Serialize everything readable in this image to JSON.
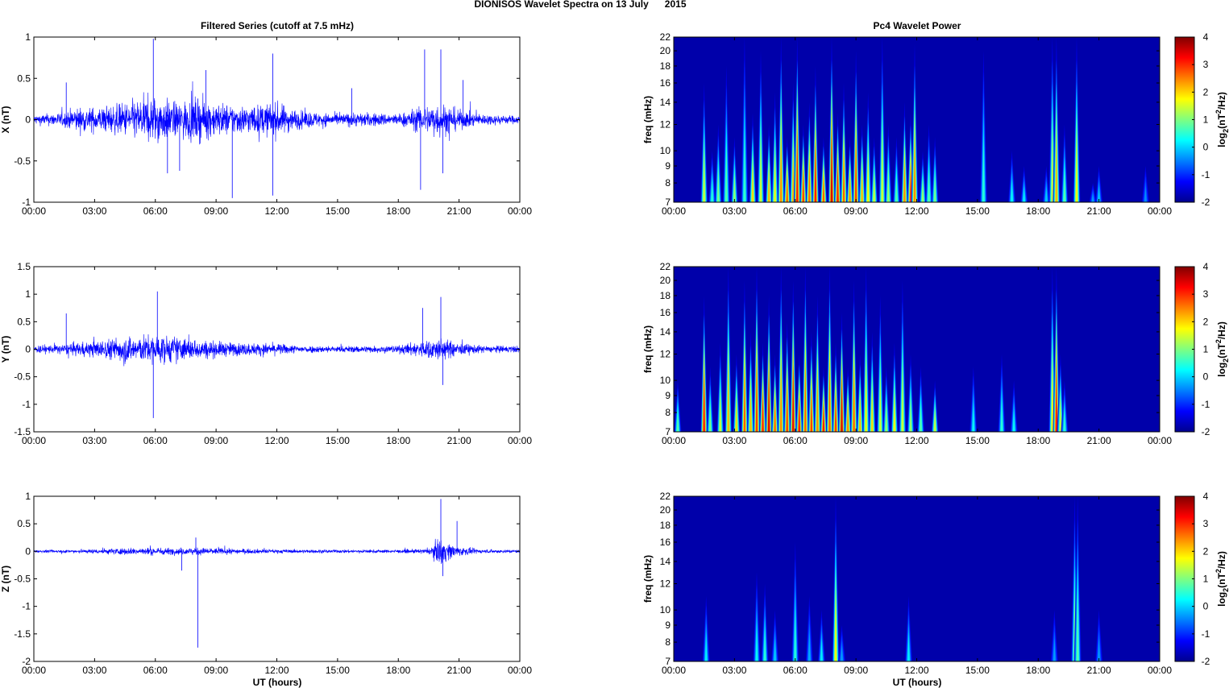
{
  "figure": {
    "title": "DIONISOS Wavelet Spectra on 13 July      2015",
    "left_title": "Filtered Series (cutoff at 7.5 mHz)",
    "right_title": "Pc4 Wavelet Power",
    "xlabel": "UT (hours)"
  },
  "colors": {
    "series": "#0000ff",
    "colormap": "jet"
  },
  "chart_data": [
    {
      "type": "line",
      "name": "x-series",
      "ylabel": "X (nT)",
      "ylim": [
        -1,
        1
      ],
      "yticks": [
        -1,
        -0.5,
        0,
        0.5,
        1
      ],
      "ytick_labels": [
        "-1",
        "-0.5",
        "0",
        "0.5",
        "1"
      ],
      "xticks": [
        "00:00",
        "03:00",
        "06:00",
        "09:00",
        "12:00",
        "15:00",
        "18:00",
        "21:00",
        "00:00"
      ],
      "envelope": [
        [
          0,
          0.1
        ],
        [
          1.5,
          0.15
        ],
        [
          2,
          0.25
        ],
        [
          3,
          0.25
        ],
        [
          4,
          0.3
        ],
        [
          5,
          0.4
        ],
        [
          6,
          0.5
        ],
        [
          7,
          0.35
        ],
        [
          8,
          0.45
        ],
        [
          9,
          0.35
        ],
        [
          10,
          0.3
        ],
        [
          11,
          0.3
        ],
        [
          12,
          0.35
        ],
        [
          13,
          0.2
        ],
        [
          14,
          0.15
        ],
        [
          15,
          0.12
        ],
        [
          16,
          0.15
        ],
        [
          18,
          0.12
        ],
        [
          19,
          0.25
        ],
        [
          20,
          0.35
        ],
        [
          20.5,
          0.3
        ],
        [
          21,
          0.2
        ],
        [
          22,
          0.12
        ],
        [
          24,
          0.08
        ]
      ],
      "spikes": [
        [
          1.6,
          0.45
        ],
        [
          5.9,
          0.98
        ],
        [
          6.6,
          -0.65
        ],
        [
          7.2,
          -0.62
        ],
        [
          8.5,
          0.6
        ],
        [
          9.8,
          -0.95
        ],
        [
          11.8,
          0.8
        ],
        [
          11.8,
          -0.92
        ],
        [
          15.7,
          0.38
        ],
        [
          19.1,
          -0.85
        ],
        [
          19.3,
          0.85
        ],
        [
          20.1,
          0.85
        ],
        [
          20.2,
          -0.65
        ],
        [
          21.2,
          0.48
        ]
      ]
    },
    {
      "type": "line",
      "name": "y-series",
      "ylabel": "Y (nT)",
      "ylim": [
        -1.5,
        1.5
      ],
      "yticks": [
        -1.5,
        -1,
        -0.5,
        0,
        0.5,
        1,
        1.5
      ],
      "ytick_labels": [
        "-1.5",
        "-1",
        "-0.5",
        "0",
        "0.5",
        "1",
        "1.5"
      ],
      "xticks": [
        "00:00",
        "03:00",
        "06:00",
        "09:00",
        "12:00",
        "15:00",
        "18:00",
        "21:00",
        "00:00"
      ],
      "envelope": [
        [
          0,
          0.12
        ],
        [
          1.5,
          0.15
        ],
        [
          2,
          0.2
        ],
        [
          3,
          0.25
        ],
        [
          4,
          0.35
        ],
        [
          4.5,
          0.45
        ],
        [
          5,
          0.4
        ],
        [
          6,
          0.45
        ],
        [
          7,
          0.4
        ],
        [
          8,
          0.3
        ],
        [
          9,
          0.25
        ],
        [
          10,
          0.2
        ],
        [
          12,
          0.18
        ],
        [
          13,
          0.12
        ],
        [
          15,
          0.1
        ],
        [
          18,
          0.12
        ],
        [
          19,
          0.25
        ],
        [
          20,
          0.35
        ],
        [
          21,
          0.2
        ],
        [
          22,
          0.12
        ],
        [
          24,
          0.1
        ]
      ],
      "spikes": [
        [
          1.6,
          0.65
        ],
        [
          5.9,
          -1.25
        ],
        [
          6.1,
          1.05
        ],
        [
          19.2,
          0.75
        ],
        [
          20.1,
          0.95
        ],
        [
          20.2,
          -0.65
        ]
      ]
    },
    {
      "type": "line",
      "name": "z-series",
      "ylabel": "Z (nT)",
      "ylim": [
        -2,
        1
      ],
      "yticks": [
        -2,
        -1.5,
        -1,
        -0.5,
        0,
        0.5,
        1
      ],
      "ytick_labels": [
        "-2",
        "-1.5",
        "-1",
        "-0.5",
        "0",
        "0.5",
        "1"
      ],
      "xticks": [
        "00:00",
        "03:00",
        "06:00",
        "09:00",
        "12:00",
        "15:00",
        "18:00",
        "21:00",
        "00:00"
      ],
      "envelope": [
        [
          0,
          0.04
        ],
        [
          2,
          0.05
        ],
        [
          4,
          0.1
        ],
        [
          6,
          0.12
        ],
        [
          7,
          0.1
        ],
        [
          8,
          0.12
        ],
        [
          10,
          0.08
        ],
        [
          12,
          0.06
        ],
        [
          15,
          0.05
        ],
        [
          18,
          0.05
        ],
        [
          19.5,
          0.08
        ],
        [
          20.1,
          0.45
        ],
        [
          20.5,
          0.25
        ],
        [
          21,
          0.15
        ],
        [
          22,
          0.06
        ],
        [
          24,
          0.05
        ]
      ],
      "spikes": [
        [
          8.1,
          -1.75
        ],
        [
          8.0,
          0.25
        ],
        [
          7.3,
          -0.35
        ],
        [
          20.1,
          0.95
        ],
        [
          20.2,
          -0.45
        ],
        [
          20.9,
          0.55
        ]
      ]
    },
    {
      "type": "heatmap",
      "name": "x-power",
      "ylabel": "freq (mHz)",
      "ylim": [
        7,
        22
      ],
      "y_scale": "log",
      "yticks": [
        7,
        8,
        9,
        10,
        12,
        14,
        16,
        18,
        20,
        22
      ],
      "xticks": [
        "00:00",
        "03:00",
        "06:00",
        "09:00",
        "12:00",
        "15:00",
        "18:00",
        "21:00",
        "00:00"
      ],
      "colorbar": {
        "range": [
          -2,
          4
        ],
        "ticks": [
          "-2",
          "-1",
          "0",
          "1",
          "2",
          "3",
          "4"
        ],
        "label_base": "log",
        "label_sub": "2",
        "label_mid": "(nT",
        "label_sup": "2",
        "label_end": "/Hz)"
      },
      "streaks": [
        [
          1.5,
          1.5,
          16
        ],
        [
          1.9,
          0.5,
          10
        ],
        [
          2.2,
          1,
          12
        ],
        [
          2.6,
          0.8,
          18
        ],
        [
          3.0,
          1.2,
          11
        ],
        [
          3.5,
          0.6,
          22
        ],
        [
          3.9,
          2,
          13
        ],
        [
          4.3,
          1.5,
          20
        ],
        [
          4.7,
          2.2,
          12
        ],
        [
          5.0,
          1.8,
          15
        ],
        [
          5.3,
          2.5,
          22
        ],
        [
          5.6,
          2.8,
          11
        ],
        [
          5.9,
          2.2,
          16
        ],
        [
          6.1,
          3.2,
          22
        ],
        [
          6.4,
          3,
          12
        ],
        [
          6.7,
          2.7,
          14
        ],
        [
          7.0,
          3.2,
          18
        ],
        [
          7.4,
          2.8,
          11
        ],
        [
          7.8,
          3.5,
          22
        ],
        [
          8.1,
          3.2,
          13
        ],
        [
          8.4,
          2.8,
          16
        ],
        [
          8.7,
          2.5,
          11
        ],
        [
          9.0,
          3,
          20
        ],
        [
          9.3,
          2.2,
          12
        ],
        [
          9.6,
          1.8,
          15
        ],
        [
          9.9,
          1.5,
          11
        ],
        [
          10.3,
          1.5,
          22
        ],
        [
          10.6,
          1.2,
          12
        ],
        [
          11.0,
          0.8,
          11
        ],
        [
          11.4,
          2.5,
          14
        ],
        [
          11.7,
          3,
          13
        ],
        [
          11.9,
          2.5,
          21
        ],
        [
          12.3,
          1.2,
          10
        ],
        [
          12.6,
          0.8,
          12
        ],
        [
          12.9,
          1,
          11
        ],
        [
          15.3,
          0.5,
          20
        ],
        [
          16.7,
          0.3,
          10
        ],
        [
          17.3,
          0.2,
          9
        ],
        [
          18.4,
          0,
          9
        ],
        [
          18.7,
          1.5,
          22
        ],
        [
          18.9,
          2.2,
          22
        ],
        [
          19.3,
          0.8,
          12
        ],
        [
          19.9,
          1.8,
          22
        ],
        [
          20.7,
          -0.3,
          8
        ],
        [
          21.0,
          0,
          9
        ],
        [
          23.3,
          -0.4,
          9
        ]
      ]
    },
    {
      "type": "heatmap",
      "name": "y-power",
      "ylabel": "freq (mHz)",
      "ylim": [
        7,
        22
      ],
      "y_scale": "log",
      "yticks": [
        7,
        8,
        9,
        10,
        12,
        14,
        16,
        18,
        20,
        22
      ],
      "xticks": [
        "00:00",
        "03:00",
        "06:00",
        "09:00",
        "12:00",
        "15:00",
        "18:00",
        "21:00",
        "00:00"
      ],
      "colorbar": {
        "range": [
          -2,
          4
        ],
        "ticks": [
          "-2",
          "-1",
          "0",
          "1",
          "2",
          "3",
          "4"
        ],
        "label_base": "log",
        "label_sub": "2",
        "label_mid": "(nT",
        "label_sup": "2",
        "label_end": "/Hz)"
      },
      "streaks": [
        [
          0.2,
          0.8,
          10
        ],
        [
          1.5,
          3.2,
          18
        ],
        [
          1.8,
          1,
          11
        ],
        [
          2.3,
          1.5,
          13
        ],
        [
          2.7,
          2.2,
          22
        ],
        [
          3.1,
          2,
          12
        ],
        [
          3.5,
          2.8,
          20
        ],
        [
          3.8,
          2.2,
          14
        ],
        [
          4.1,
          3,
          22
        ],
        [
          4.4,
          3.2,
          13
        ],
        [
          4.7,
          3.5,
          18
        ],
        [
          5.0,
          2.8,
          12
        ],
        [
          5.3,
          2.5,
          22
        ],
        [
          5.6,
          3,
          15
        ],
        [
          5.9,
          3.4,
          20
        ],
        [
          6.2,
          3.2,
          12
        ],
        [
          6.5,
          2.8,
          22
        ],
        [
          6.8,
          3,
          14
        ],
        [
          7.1,
          2.5,
          18
        ],
        [
          7.4,
          3.2,
          11
        ],
        [
          7.7,
          2.8,
          22
        ],
        [
          8.0,
          3,
          13
        ],
        [
          8.3,
          3.5,
          16
        ],
        [
          8.6,
          2.5,
          11
        ],
        [
          8.9,
          2.8,
          20
        ],
        [
          9.2,
          2.2,
          12
        ],
        [
          9.5,
          1.8,
          22
        ],
        [
          9.8,
          2,
          14
        ],
        [
          10.2,
          1.5,
          18
        ],
        [
          10.5,
          1.2,
          11
        ],
        [
          10.9,
          1.8,
          13
        ],
        [
          11.3,
          1.5,
          20
        ],
        [
          11.7,
          1.2,
          12
        ],
        [
          12.2,
          0.8,
          11
        ],
        [
          12.9,
          1.5,
          10
        ],
        [
          14.8,
          0.3,
          11
        ],
        [
          16.2,
          0.5,
          12
        ],
        [
          16.8,
          0.3,
          10
        ],
        [
          18.7,
          1.8,
          22
        ],
        [
          18.9,
          3.2,
          22
        ],
        [
          19.1,
          1.5,
          12
        ],
        [
          19.3,
          0.5,
          10
        ]
      ]
    },
    {
      "type": "heatmap",
      "name": "z-power",
      "ylabel": "freq (mHz)",
      "ylim": [
        7,
        22
      ],
      "y_scale": "log",
      "yticks": [
        7,
        8,
        9,
        10,
        12,
        14,
        16,
        18,
        20,
        22
      ],
      "xticks": [
        "00:00",
        "03:00",
        "06:00",
        "09:00",
        "12:00",
        "15:00",
        "18:00",
        "21:00",
        "00:00"
      ],
      "colorbar": {
        "range": [
          -2,
          4
        ],
        "ticks": [
          "-2",
          "-1",
          "0",
          "1",
          "2",
          "3",
          "4"
        ],
        "label_base": "log",
        "label_sub": "2",
        "label_mid": "(nT",
        "label_sup": "2",
        "label_end": "/Hz)"
      },
      "streaks": [
        [
          1.6,
          0.2,
          11
        ],
        [
          4.1,
          0.3,
          13
        ],
        [
          4.5,
          0.5,
          12
        ],
        [
          5.0,
          0,
          10
        ],
        [
          6.0,
          0.5,
          16
        ],
        [
          6.7,
          -0.2,
          11
        ],
        [
          7.3,
          0.2,
          10
        ],
        [
          8.0,
          1.8,
          22
        ],
        [
          8.3,
          -0.3,
          9
        ],
        [
          11.6,
          0.2,
          11
        ],
        [
          18.8,
          -0.3,
          10
        ],
        [
          19.8,
          1,
          22
        ],
        [
          19.95,
          0.8,
          22
        ],
        [
          21.0,
          -0.3,
          10
        ]
      ]
    }
  ]
}
